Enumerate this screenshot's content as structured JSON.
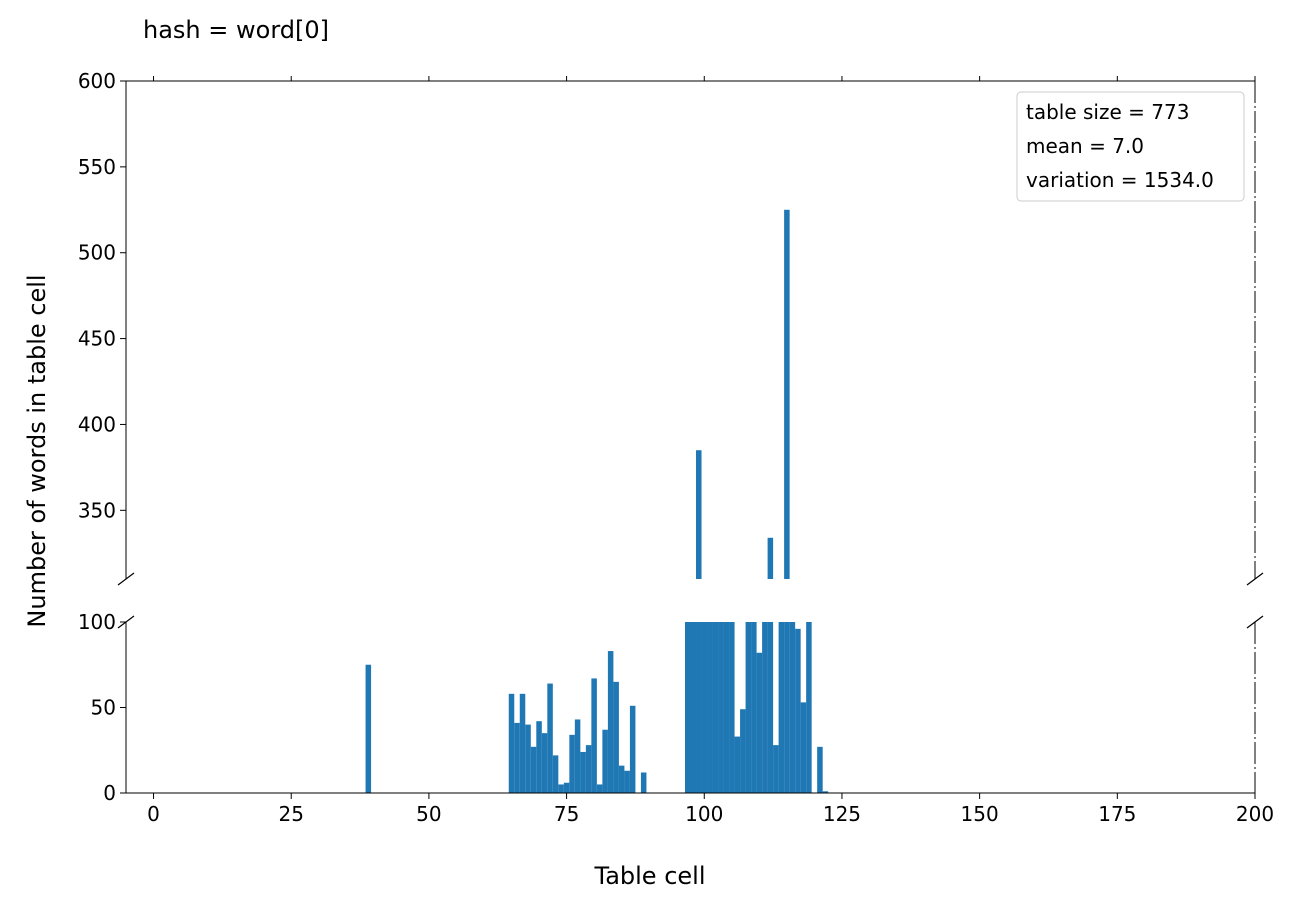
{
  "chart_data": {
    "type": "bar",
    "title": "hash = word[0]",
    "xlabel": "Table cell",
    "ylabel": "Number of words in table cell",
    "xlim": [
      -5,
      200
    ],
    "xticks": [
      0,
      25,
      50,
      75,
      100,
      125,
      150,
      175,
      200
    ],
    "broken_y_axis": true,
    "upper_ylim": [
      310,
      600
    ],
    "upper_yticks": [
      350,
      400,
      450,
      500,
      550,
      600
    ],
    "lower_ylim": [
      0,
      100
    ],
    "lower_yticks": [
      0,
      50,
      100
    ],
    "bar_color": "#1f77b4",
    "legend_position": "top-right",
    "annotations": [
      "table size = 773",
      "mean = 7.0",
      "variation = 1534.0"
    ],
    "x": [
      39,
      65,
      66,
      67,
      68,
      69,
      70,
      71,
      72,
      73,
      74,
      75,
      76,
      77,
      78,
      79,
      80,
      81,
      82,
      83,
      84,
      85,
      86,
      87,
      89,
      97,
      98,
      99,
      100,
      101,
      102,
      103,
      104,
      105,
      106,
      107,
      108,
      109,
      110,
      111,
      112,
      113,
      114,
      115,
      116,
      117,
      118,
      119,
      121,
      122
    ],
    "values": [
      75,
      58,
      41,
      58,
      40,
      27,
      42,
      35,
      64,
      22,
      5,
      6,
      34,
      43,
      24,
      28,
      67,
      5,
      37,
      83,
      65,
      16,
      13,
      51,
      12,
      100,
      100,
      385,
      100,
      100,
      100,
      100,
      100,
      100,
      33,
      49,
      100,
      100,
      82,
      100,
      334,
      28,
      100,
      525,
      100,
      96,
      53,
      100,
      27,
      1
    ]
  }
}
